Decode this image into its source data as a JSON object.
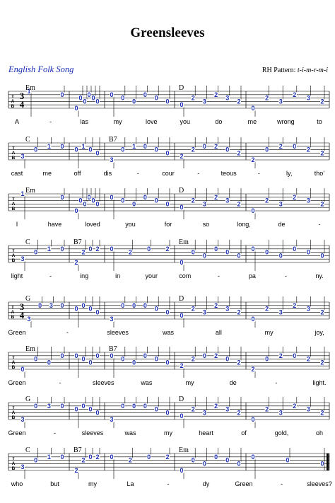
{
  "title": "Greensleeves",
  "subtitle": "English Folk Song",
  "rh_pattern": {
    "label": "RH Pattern:",
    "value": "t-i-m-r-m-i"
  },
  "tab_label": [
    "T",
    "A",
    "B"
  ],
  "time_signature": [
    "3",
    "4"
  ],
  "systems": [
    {
      "chords": [
        "Em",
        "",
        "",
        "D",
        ""
      ],
      "lyrics": [
        "A",
        "-",
        "las",
        "my",
        "love",
        "you",
        "do",
        "me",
        "wrong",
        "to"
      ],
      "measures": [
        [
          [
            0,
            "1",
            0
          ],
          [
            1,
            "0",
            1
          ]
        ],
        [
          [
            5,
            "0",
            0
          ],
          [
            2,
            "0",
            1
          ],
          [
            3,
            "0",
            1
          ],
          [
            1,
            "0",
            1
          ],
          [
            2,
            "0",
            1
          ],
          [
            3,
            "0",
            1
          ]
        ],
        [
          [
            1,
            "0",
            0
          ],
          [
            2,
            "0",
            1
          ],
          [
            3,
            "0",
            1
          ],
          [
            1,
            "0",
            1
          ],
          [
            2,
            "0",
            1
          ],
          [
            3,
            "0",
            1
          ]
        ],
        [
          [
            4,
            "0",
            0
          ],
          [
            2,
            "2",
            1
          ],
          [
            3,
            "3",
            1
          ],
          [
            1,
            "2",
            1
          ],
          [
            2,
            "3",
            1
          ],
          [
            3,
            "2",
            1
          ]
        ],
        [
          [
            5,
            "0",
            0
          ],
          [
            2,
            "2",
            1
          ],
          [
            3,
            "3",
            1
          ],
          [
            1,
            "2",
            1
          ],
          [
            2,
            "3",
            1
          ],
          [
            3,
            "2",
            1
          ]
        ]
      ],
      "ts": true
    },
    {
      "chords": [
        "C",
        "",
        "B7",
        "",
        ""
      ],
      "lyrics": [
        "cast",
        "me",
        "off",
        "dis",
        "-",
        "cour",
        "-",
        "teous",
        "-",
        "ly,",
        "tho’"
      ],
      "measures": [
        [
          [
            4,
            "3",
            0
          ],
          [
            2,
            "0",
            1
          ],
          [
            1,
            "1",
            1
          ],
          [
            1,
            "0",
            1
          ]
        ],
        [
          [
            2,
            "0",
            0
          ],
          [
            1,
            "1",
            1
          ],
          [
            2,
            "0",
            1
          ],
          [
            3,
            "0",
            1
          ]
        ],
        [
          [
            5,
            "3",
            0
          ],
          [
            2,
            "0",
            1
          ],
          [
            1,
            "1",
            1
          ],
          [
            1,
            "0",
            1
          ],
          [
            2,
            "0",
            1
          ],
          [
            3,
            "0",
            1
          ]
        ],
        [
          [
            4,
            "2",
            0
          ],
          [
            2,
            "2",
            1
          ],
          [
            1,
            "0",
            1
          ],
          [
            1,
            "2",
            1
          ],
          [
            2,
            "0",
            1
          ],
          [
            3,
            "2",
            1
          ]
        ],
        [
          [
            5,
            "2",
            0
          ],
          [
            2,
            "0",
            1
          ],
          [
            1,
            "2",
            1
          ],
          [
            1,
            "0",
            1
          ],
          [
            2,
            "2",
            1
          ],
          [
            3,
            "2",
            1
          ]
        ]
      ],
      "ts": false
    },
    {
      "chords": [
        "Em",
        "",
        "",
        "D",
        ""
      ],
      "lyrics": [
        "I",
        "have",
        "loved",
        "you",
        "for",
        "so",
        "long,",
        "de",
        "-"
      ],
      "measures": [
        [
          [
            0,
            "1",
            0
          ],
          [
            1,
            "0",
            1
          ]
        ],
        [
          [
            5,
            "0",
            0
          ],
          [
            2,
            "0",
            1
          ],
          [
            3,
            "0",
            1
          ],
          [
            1,
            "0",
            1
          ],
          [
            2,
            "0",
            1
          ],
          [
            3,
            "0",
            1
          ]
        ],
        [
          [
            1,
            "0",
            0
          ],
          [
            2,
            "0",
            1
          ],
          [
            3,
            "0",
            1
          ],
          [
            1,
            "0",
            1
          ],
          [
            2,
            "0",
            1
          ],
          [
            3,
            "0",
            1
          ]
        ],
        [
          [
            4,
            "0",
            0
          ],
          [
            2,
            "2",
            1
          ],
          [
            3,
            "3",
            1
          ],
          [
            1,
            "2",
            1
          ],
          [
            2,
            "3",
            1
          ],
          [
            3,
            "2",
            1
          ]
        ],
        [
          [
            5,
            "0",
            0
          ],
          [
            2,
            "2",
            1
          ],
          [
            3,
            "3",
            1
          ],
          [
            1,
            "2",
            1
          ],
          [
            2,
            "3",
            1
          ],
          [
            3,
            "2",
            1
          ]
        ]
      ],
      "ts": false
    },
    {
      "chords": [
        "C",
        "B7",
        "",
        "Em",
        ""
      ],
      "lyrics": [
        "light",
        "-",
        "ing",
        "in",
        "your",
        "com",
        "-",
        "pa",
        "-",
        "ny."
      ],
      "measures": [
        [
          [
            4,
            "3",
            0
          ],
          [
            2,
            "0",
            1
          ],
          [
            1,
            "1",
            1
          ],
          [
            1,
            "0",
            1
          ]
        ],
        [
          [
            5,
            "2",
            0
          ],
          [
            2,
            "2",
            1
          ],
          [
            1,
            "0",
            1
          ],
          [
            1,
            "2",
            1
          ]
        ],
        [
          [
            1,
            "0",
            0
          ],
          [
            2,
            "2",
            1
          ],
          [
            1,
            "0",
            1
          ],
          [
            1,
            "2",
            1
          ]
        ],
        [
          [
            5,
            "0",
            0
          ],
          [
            2,
            "0",
            1
          ],
          [
            3,
            "0",
            1
          ],
          [
            1,
            "0",
            1
          ],
          [
            2,
            "0",
            1
          ],
          [
            3,
            "0",
            1
          ]
        ],
        [
          [
            1,
            "0",
            0
          ],
          [
            2,
            "0",
            1
          ],
          [
            3,
            "0",
            1
          ],
          [
            1,
            "0",
            1
          ],
          [
            2,
            "0",
            1
          ],
          [
            3,
            "0",
            1
          ]
        ]
      ],
      "ts": false
    },
    {
      "chords": [
        "G",
        "",
        "",
        "D",
        ""
      ],
      "lyrics": [
        "Green",
        "-",
        "sleeves",
        "was",
        "all",
        "my",
        "joy,"
      ],
      "measures": [
        [
          [
            5,
            "3",
            0
          ],
          [
            1,
            "0",
            1
          ],
          [
            1,
            "3",
            1
          ],
          [
            1,
            "0",
            1
          ]
        ],
        [
          [
            2,
            "0",
            0
          ],
          [
            1,
            "0",
            1
          ],
          [
            2,
            "0",
            1
          ],
          [
            3,
            "0",
            1
          ]
        ],
        [
          [
            5,
            "3",
            0
          ],
          [
            1,
            "0",
            1
          ],
          [
            1,
            "0",
            1
          ],
          [
            1,
            "0",
            1
          ],
          [
            2,
            "0",
            1
          ],
          [
            3,
            "0",
            1
          ]
        ],
        [
          [
            4,
            "0",
            0
          ],
          [
            2,
            "2",
            1
          ],
          [
            3,
            "3",
            1
          ],
          [
            1,
            "2",
            1
          ],
          [
            2,
            "3",
            1
          ],
          [
            3,
            "2",
            1
          ]
        ],
        [
          [
            5,
            "0",
            0
          ],
          [
            2,
            "2",
            1
          ],
          [
            3,
            "3",
            1
          ],
          [
            1,
            "2",
            1
          ],
          [
            2,
            "3",
            1
          ],
          [
            3,
            "2",
            1
          ]
        ]
      ],
      "ts": true
    },
    {
      "chords": [
        "Em",
        "",
        "B7",
        "",
        ""
      ],
      "lyrics": [
        "Green",
        "-",
        "sleeves",
        "was",
        "my",
        "de",
        "-",
        "light."
      ],
      "measures": [
        [
          [
            5,
            "0",
            0
          ],
          [
            2,
            "0",
            1
          ],
          [
            3,
            "0",
            1
          ],
          [
            1,
            "0",
            1
          ]
        ],
        [
          [
            1,
            "0",
            0
          ],
          [
            2,
            "0",
            1
          ],
          [
            3,
            "0",
            1
          ],
          [
            1,
            "0",
            1
          ]
        ],
        [
          [
            1,
            "0",
            0
          ],
          [
            2,
            "0",
            1
          ],
          [
            3,
            "0",
            1
          ],
          [
            1,
            "0",
            1
          ],
          [
            2,
            "0",
            1
          ],
          [
            3,
            "0",
            1
          ]
        ],
        [
          [
            4,
            "2",
            0
          ],
          [
            2,
            "2",
            1
          ],
          [
            1,
            "0",
            1
          ],
          [
            1,
            "2",
            1
          ],
          [
            2,
            "0",
            1
          ],
          [
            3,
            "2",
            1
          ]
        ],
        [
          [
            5,
            "2",
            0
          ],
          [
            2,
            "0",
            1
          ],
          [
            1,
            "2",
            1
          ],
          [
            1,
            "0",
            1
          ],
          [
            2,
            "2",
            1
          ],
          [
            3,
            "2",
            1
          ]
        ]
      ],
      "ts": false
    },
    {
      "chords": [
        "G",
        "",
        "",
        "D",
        ""
      ],
      "lyrics": [
        "Green",
        "-",
        "sleeves",
        "was",
        "my",
        "heart",
        "of",
        "gold,",
        "oh"
      ],
      "measures": [
        [
          [
            5,
            "3",
            0
          ],
          [
            1,
            "0",
            1
          ],
          [
            1,
            "3",
            1
          ],
          [
            1,
            "0",
            1
          ]
        ],
        [
          [
            2,
            "0",
            0
          ],
          [
            1,
            "0",
            1
          ],
          [
            2,
            "0",
            1
          ],
          [
            3,
            "0",
            1
          ]
        ],
        [
          [
            5,
            "3",
            0
          ],
          [
            1,
            "0",
            1
          ],
          [
            1,
            "0",
            1
          ],
          [
            1,
            "0",
            1
          ],
          [
            2,
            "0",
            1
          ],
          [
            3,
            "0",
            1
          ]
        ],
        [
          [
            4,
            "0",
            0
          ],
          [
            2,
            "2",
            1
          ],
          [
            3,
            "3",
            1
          ],
          [
            1,
            "2",
            1
          ],
          [
            2,
            "3",
            1
          ],
          [
            3,
            "2",
            1
          ]
        ],
        [
          [
            5,
            "0",
            0
          ],
          [
            2,
            "2",
            1
          ],
          [
            3,
            "3",
            1
          ],
          [
            1,
            "2",
            1
          ],
          [
            2,
            "3",
            1
          ],
          [
            3,
            "2",
            1
          ]
        ]
      ],
      "ts": false
    },
    {
      "chords": [
        "C",
        "B7",
        "",
        "Em",
        ""
      ],
      "lyrics": [
        "who",
        "but",
        "my",
        "La",
        "-",
        "dy",
        "Green",
        "-",
        "sleeves?"
      ],
      "measures": [
        [
          [
            4,
            "3",
            0
          ],
          [
            2,
            "0",
            1
          ],
          [
            1,
            "1",
            1
          ],
          [
            1,
            "0",
            1
          ]
        ],
        [
          [
            5,
            "2",
            0
          ],
          [
            2,
            "2",
            1
          ],
          [
            1,
            "0",
            1
          ],
          [
            1,
            "2",
            1
          ]
        ],
        [
          [
            1,
            "0",
            0
          ],
          [
            2,
            "2",
            1
          ],
          [
            1,
            "0",
            1
          ],
          [
            1,
            "2",
            1
          ]
        ],
        [
          [
            5,
            "0",
            0
          ],
          [
            2,
            "0",
            1
          ],
          [
            3,
            "0",
            1
          ],
          [
            1,
            "0",
            1
          ],
          [
            2,
            "0",
            1
          ],
          [
            3,
            "0",
            1
          ]
        ],
        [
          [
            1,
            "0",
            0
          ],
          [
            2,
            "0",
            1
          ],
          [
            3,
            "0",
            1
          ]
        ]
      ],
      "ts": false,
      "final": true
    }
  ]
}
